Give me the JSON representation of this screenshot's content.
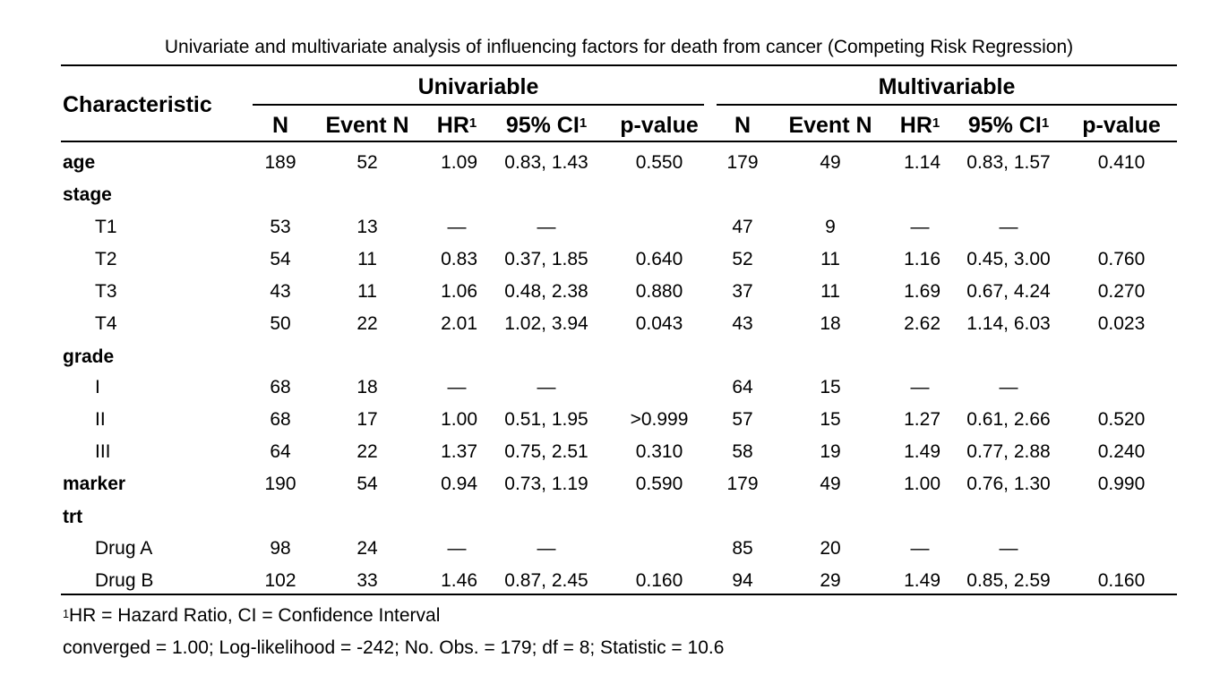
{
  "caption": "Univariate and multivariate analysis of influencing factors for death from cancer (Competing Risk Regression)",
  "header": {
    "characteristic": "Characteristic",
    "univariable": "Univariable",
    "multivariable": "Multivariable",
    "columns": [
      "N",
      "Event N",
      "HR",
      "95% CI",
      "p-value",
      "N",
      "Event N",
      "HR",
      "95% CI",
      "p-value"
    ],
    "footnote_marker": "1"
  },
  "rows": [
    {
      "label": "age",
      "type": "var",
      "cells": [
        "189",
        "52",
        "1.09",
        "0.83, 1.43",
        "0.550",
        "179",
        "49",
        "1.14",
        "0.83, 1.57",
        "0.410"
      ]
    },
    {
      "label": "stage",
      "type": "var",
      "cells": [
        "",
        "",
        "",
        "",
        "",
        "",
        "",
        "",
        "",
        ""
      ]
    },
    {
      "label": "T1",
      "type": "level",
      "cells": [
        "53",
        "13",
        "—",
        "—",
        "",
        "47",
        "9",
        "—",
        "—",
        ""
      ]
    },
    {
      "label": "T2",
      "type": "level",
      "cells": [
        "54",
        "11",
        "0.83",
        "0.37, 1.85",
        "0.640",
        "52",
        "11",
        "1.16",
        "0.45, 3.00",
        "0.760"
      ]
    },
    {
      "label": "T3",
      "type": "level",
      "cells": [
        "43",
        "11",
        "1.06",
        "0.48, 2.38",
        "0.880",
        "37",
        "11",
        "1.69",
        "0.67, 4.24",
        "0.270"
      ]
    },
    {
      "label": "T4",
      "type": "level",
      "cells": [
        "50",
        "22",
        "2.01",
        "1.02, 3.94",
        "0.043",
        "43",
        "18",
        "2.62",
        "1.14, 6.03",
        "0.023"
      ]
    },
    {
      "label": "grade",
      "type": "var",
      "cells": [
        "",
        "",
        "",
        "",
        "",
        "",
        "",
        "",
        "",
        ""
      ]
    },
    {
      "label": "I",
      "type": "level",
      "cells": [
        "68",
        "18",
        "—",
        "—",
        "",
        "64",
        "15",
        "—",
        "—",
        ""
      ]
    },
    {
      "label": "II",
      "type": "level",
      "cells": [
        "68",
        "17",
        "1.00",
        "0.51, 1.95",
        ">0.999",
        "57",
        "15",
        "1.27",
        "0.61, 2.66",
        "0.520"
      ]
    },
    {
      "label": "III",
      "type": "level",
      "cells": [
        "64",
        "22",
        "1.37",
        "0.75, 2.51",
        "0.310",
        "58",
        "19",
        "1.49",
        "0.77, 2.88",
        "0.240"
      ]
    },
    {
      "label": "marker",
      "type": "var",
      "cells": [
        "190",
        "54",
        "0.94",
        "0.73, 1.19",
        "0.590",
        "179",
        "49",
        "1.00",
        "0.76, 1.30",
        "0.990"
      ]
    },
    {
      "label": "trt",
      "type": "var",
      "cells": [
        "",
        "",
        "",
        "",
        "",
        "",
        "",
        "",
        "",
        ""
      ]
    },
    {
      "label": "Drug A",
      "type": "level",
      "cells": [
        "98",
        "24",
        "—",
        "—",
        "",
        "85",
        "20",
        "—",
        "—",
        ""
      ]
    },
    {
      "label": "Drug B",
      "type": "level",
      "cells": [
        "102",
        "33",
        "1.46",
        "0.87, 2.45",
        "0.160",
        "94",
        "29",
        "1.49",
        "0.85, 2.59",
        "0.160"
      ]
    }
  ],
  "footnotes": {
    "note1_marker": "1",
    "note1": "HR = Hazard Ratio, CI = Confidence Interval",
    "note2": "converged = 1.00; Log-likelihood = -242; No. Obs. = 179; df = 8; Statistic = 10.6"
  }
}
